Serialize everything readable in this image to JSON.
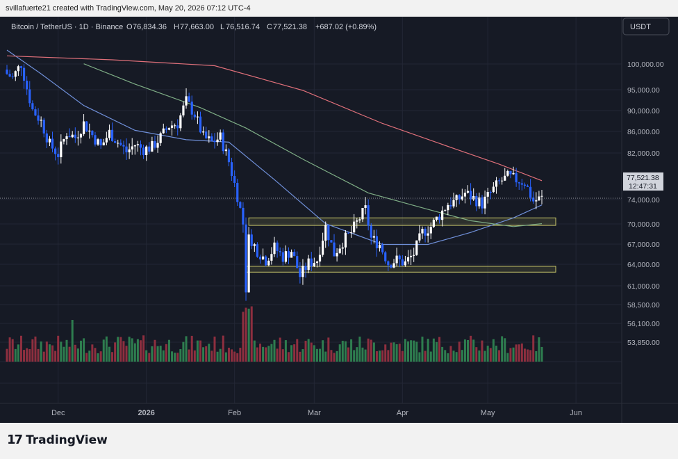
{
  "header": {
    "caption": "svillafuerte21 created with TradingView.com, May 20, 2026 07:12 UTC-4"
  },
  "legend": {
    "symbol": "Bitcoin / TetherUS · 1D · Binance",
    "open_label": "O",
    "open": "76,834.36",
    "high_label": "H",
    "high": "77,663.00",
    "low_label": "L",
    "low": "76,516.74",
    "close_label": "C",
    "close": "77,521.38",
    "change": "+687.02 (+0.89%)"
  },
  "price_scale": {
    "currency": "USDT",
    "last_price_label": "77,521.38",
    "countdown": "12:47:31",
    "ticks": [
      "100,000.00",
      "95,000.00",
      "90,000.00",
      "86,000.00",
      "82,000.00",
      "74,000.00",
      "70,000.00",
      "67,000.00",
      "64,000.00",
      "61,000.00",
      "58,500.00",
      "56,100.00",
      "53,850.00"
    ]
  },
  "time_axis": {
    "labels": [
      "Dec",
      "2026",
      "Feb",
      "Mar",
      "Apr",
      "May",
      "Jun"
    ]
  },
  "branding": {
    "name": "TradingView"
  },
  "colors": {
    "background": "#161a25",
    "up": "#ffffff",
    "down": "#2962ff",
    "vol_up": "#2e7d4f",
    "vol_down": "#8e2f3f",
    "ma_fast": "#6f8fd8",
    "ma_mid": "#7fae86",
    "ma_slow": "#e0707a",
    "zone_border": "#c9c86a",
    "zone_fill": "rgba(150,150,80,0.18)"
  },
  "chart_data": {
    "type": "candlestick",
    "symbol": "BTCUSDT",
    "interval": "1D",
    "y_scale": "log",
    "ylim": [
      62000,
      112000
    ],
    "x_ticks": [
      "Dec",
      "2026",
      "Feb",
      "Mar",
      "Apr",
      "May",
      "Jun"
    ],
    "series": [
      {
        "name": "price",
        "points": [
          {
            "date": "2025-11-13",
            "close": 104000
          },
          {
            "date": "2025-11-15",
            "close": 103000
          },
          {
            "date": "2025-11-18",
            "close": 106500
          },
          {
            "date": "2025-11-20",
            "close": 100500
          },
          {
            "date": "2025-11-22",
            "close": 95500
          },
          {
            "date": "2025-11-25",
            "close": 93000
          },
          {
            "date": "2025-11-28",
            "close": 88000
          },
          {
            "date": "2025-12-01",
            "close": 86000
          },
          {
            "date": "2025-12-04",
            "close": 90500
          },
          {
            "date": "2025-12-07",
            "close": 89500
          },
          {
            "date": "2025-12-10",
            "close": 92500
          },
          {
            "date": "2025-12-13",
            "close": 90000
          },
          {
            "date": "2025-12-16",
            "close": 87500
          },
          {
            "date": "2025-12-19",
            "close": 90500
          },
          {
            "date": "2025-12-22",
            "close": 88500
          },
          {
            "date": "2025-12-25",
            "close": 86500
          },
          {
            "date": "2025-12-28",
            "close": 88000
          },
          {
            "date": "2025-12-31",
            "close": 87000
          },
          {
            "date": "2026-01-03",
            "close": 87500
          },
          {
            "date": "2026-01-06",
            "close": 89500
          },
          {
            "date": "2026-01-09",
            "close": 92000
          },
          {
            "date": "2026-01-12",
            "close": 92500
          },
          {
            "date": "2026-01-15",
            "close": 97500
          },
          {
            "date": "2026-01-18",
            "close": 94500
          },
          {
            "date": "2026-01-21",
            "close": 89500
          },
          {
            "date": "2026-01-24",
            "close": 88500
          },
          {
            "date": "2026-01-27",
            "close": 89500
          },
          {
            "date": "2026-01-30",
            "close": 84500
          },
          {
            "date": "2026-02-02",
            "close": 78000
          },
          {
            "date": "2026-02-04",
            "close": 73000
          },
          {
            "date": "2026-02-05",
            "close": 63000
          },
          {
            "date": "2026-02-06",
            "close": 71000
          },
          {
            "date": "2026-02-09",
            "close": 68500
          },
          {
            "date": "2026-02-12",
            "close": 67000
          },
          {
            "date": "2026-02-15",
            "close": 69000
          },
          {
            "date": "2026-02-18",
            "close": 67500
          },
          {
            "date": "2026-02-21",
            "close": 68500
          },
          {
            "date": "2026-02-24",
            "close": 64500
          },
          {
            "date": "2026-02-27",
            "close": 66500
          },
          {
            "date": "2026-03-02",
            "close": 67000
          },
          {
            "date": "2026-03-05",
            "close": 72500
          },
          {
            "date": "2026-03-08",
            "close": 68000
          },
          {
            "date": "2026-03-11",
            "close": 70000
          },
          {
            "date": "2026-03-14",
            "close": 71500
          },
          {
            "date": "2026-03-17",
            "close": 74000
          },
          {
            "date": "2026-03-19",
            "close": 75500
          },
          {
            "date": "2026-03-21",
            "close": 70500
          },
          {
            "date": "2026-03-24",
            "close": 69500
          },
          {
            "date": "2026-03-27",
            "close": 66500
          },
          {
            "date": "2026-03-30",
            "close": 67000
          },
          {
            "date": "2026-04-02",
            "close": 66500
          },
          {
            "date": "2026-04-05",
            "close": 68000
          },
          {
            "date": "2026-04-08",
            "close": 71500
          },
          {
            "date": "2026-04-11",
            "close": 72500
          },
          {
            "date": "2026-04-14",
            "close": 74500
          },
          {
            "date": "2026-04-17",
            "close": 76500
          },
          {
            "date": "2026-04-20",
            "close": 77000
          },
          {
            "date": "2026-04-23",
            "close": 78500
          },
          {
            "date": "2026-04-26",
            "close": 77500
          },
          {
            "date": "2026-04-29",
            "close": 76500
          },
          {
            "date": "2026-05-02",
            "close": 78500
          },
          {
            "date": "2026-05-05",
            "close": 80500
          },
          {
            "date": "2026-05-08",
            "close": 81500
          },
          {
            "date": "2026-05-11",
            "close": 81000
          },
          {
            "date": "2026-05-14",
            "close": 80500
          },
          {
            "date": "2026-05-17",
            "close": 77000
          },
          {
            "date": "2026-05-20",
            "close": 77521.38
          }
        ]
      },
      {
        "name": "ma_fast",
        "points": [
          {
            "date": "2025-11-13",
            "value": 110000
          },
          {
            "date": "2025-11-25",
            "value": 104000
          },
          {
            "date": "2025-12-10",
            "value": 96500
          },
          {
            "date": "2025-12-28",
            "value": 91000
          },
          {
            "date": "2026-01-15",
            "value": 89000
          },
          {
            "date": "2026-01-30",
            "value": 88500
          },
          {
            "date": "2026-02-15",
            "value": 81000
          },
          {
            "date": "2026-03-05",
            "value": 73000
          },
          {
            "date": "2026-03-25",
            "value": 69500
          },
          {
            "date": "2026-04-10",
            "value": 69500
          },
          {
            "date": "2026-04-25",
            "value": 71500
          },
          {
            "date": "2026-05-10",
            "value": 74000
          },
          {
            "date": "2026-05-20",
            "value": 76300
          }
        ]
      },
      {
        "name": "ma_mid",
        "points": [
          {
            "date": "2025-12-10",
            "value": 106500
          },
          {
            "date": "2025-12-28",
            "value": 101500
          },
          {
            "date": "2026-01-20",
            "value": 96000
          },
          {
            "date": "2026-02-05",
            "value": 91500
          },
          {
            "date": "2026-02-25",
            "value": 85000
          },
          {
            "date": "2026-03-20",
            "value": 78500
          },
          {
            "date": "2026-04-10",
            "value": 75500
          },
          {
            "date": "2026-04-25",
            "value": 73500
          },
          {
            "date": "2026-05-10",
            "value": 72500
          },
          {
            "date": "2026-05-20",
            "value": 73000
          }
        ]
      },
      {
        "name": "ma_slow",
        "points": [
          {
            "date": "2025-11-13",
            "value": 108500
          },
          {
            "date": "2025-12-20",
            "value": 107500
          },
          {
            "date": "2026-01-25",
            "value": 106000
          },
          {
            "date": "2026-02-25",
            "value": 100000
          },
          {
            "date": "2026-03-25",
            "value": 92500
          },
          {
            "date": "2026-04-20",
            "value": 87000
          },
          {
            "date": "2026-05-05",
            "value": 84000
          },
          {
            "date": "2026-05-20",
            "value": 80800
          }
        ]
      }
    ],
    "zones": [
      {
        "from": "2026-02-06",
        "to": "2026-05-20",
        "low": 72700,
        "high": 74000
      },
      {
        "from": "2026-02-05",
        "to": "2026-05-20",
        "low": 65100,
        "high": 66000
      }
    ],
    "volume": {
      "visible": true,
      "axis_labels": "none"
    }
  }
}
